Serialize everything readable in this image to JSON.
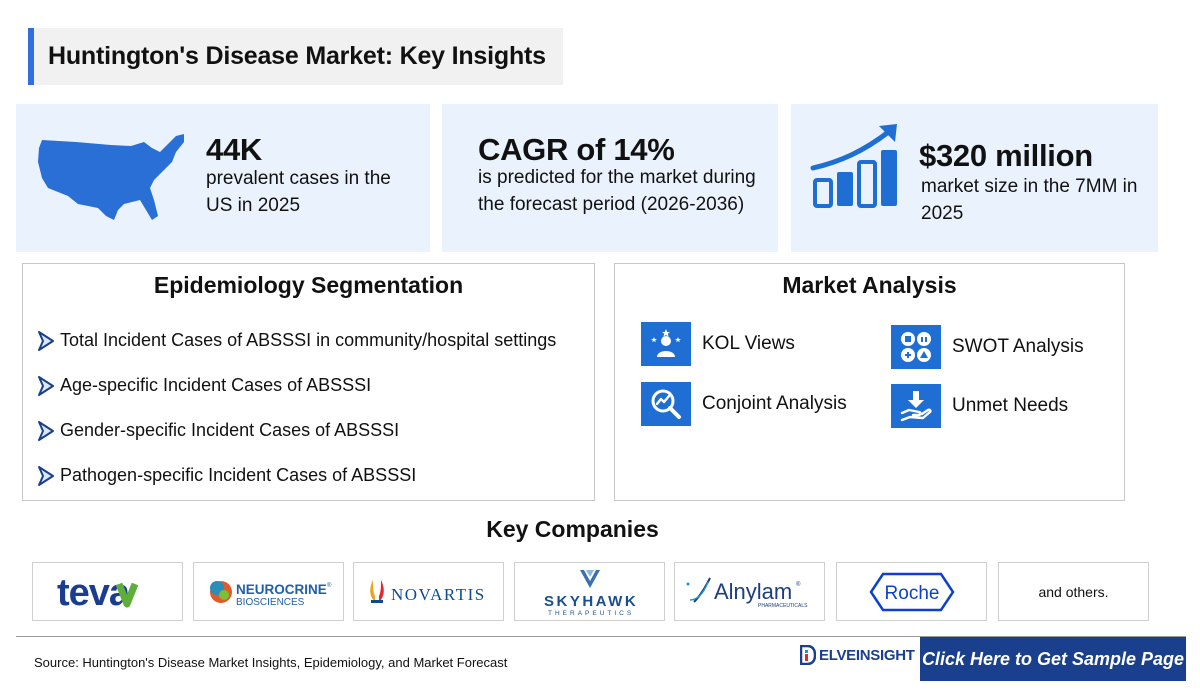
{
  "header": {
    "title": "Huntington's Disease Market: Key Insights"
  },
  "stats": [
    {
      "value": "44K",
      "description": "prevalent cases in the US in 2025",
      "icon": "us-map-icon"
    },
    {
      "value": "CAGR of 14%",
      "description": "is predicted for the market during the forecast period (2026-2036)"
    },
    {
      "value": "$320 million",
      "description": "market size in the 7MM in 2025",
      "icon": "growth-chart-icon"
    }
  ],
  "epidemiology": {
    "title": "Epidemiology Segmentation",
    "items": [
      "Total Incident Cases of ABSSSI in community/hospital settings",
      "Age-specific Incident Cases of ABSSSI",
      "Gender-specific Incident Cases of ABSSSI",
      "Pathogen-specific Incident Cases of ABSSSI"
    ]
  },
  "market_analysis": {
    "title": "Market Analysis",
    "items": [
      {
        "label": "KOL Views",
        "icon": "kol-icon"
      },
      {
        "label": "SWOT Analysis",
        "icon": "swot-icon"
      },
      {
        "label": "Conjoint Analysis",
        "icon": "conjoint-analysis-icon"
      },
      {
        "label": "Unmet Needs",
        "icon": "unmet-needs-icon"
      }
    ]
  },
  "key_companies": {
    "title": "Key Companies",
    "logos": [
      {
        "name": "teva",
        "color": "#1a3d8f"
      },
      {
        "name": "NEUROCRINE",
        "sub": "BIOSCIENCES",
        "mark": "®",
        "color": "#1f5fa8"
      },
      {
        "name": "NOVARTIS",
        "color": "#0d4a8f"
      },
      {
        "name": "SKYHAWK",
        "sub": "THERAPEUTICS",
        "color": "#1a4f8f"
      },
      {
        "name": "Alnylam",
        "sub": "PHARMACEUTICALS",
        "mark": "®",
        "color": "#1c3f7a"
      },
      {
        "name": "Roche",
        "color": "#0b41cd"
      }
    ],
    "others": "and others."
  },
  "footer": {
    "source": "Source: Huntington's Disease Market Insights, Epidemiology, and Market Forecast",
    "brand": "ELVEINSIGHT",
    "brand_initial": "D",
    "cta": "Click Here to Get Sample Page"
  },
  "colors": {
    "accent": "#2f6fe0",
    "tile": "#1f6ed4",
    "card_bg": "#eaf3fd",
    "brand_navy": "#1a3f8c"
  }
}
